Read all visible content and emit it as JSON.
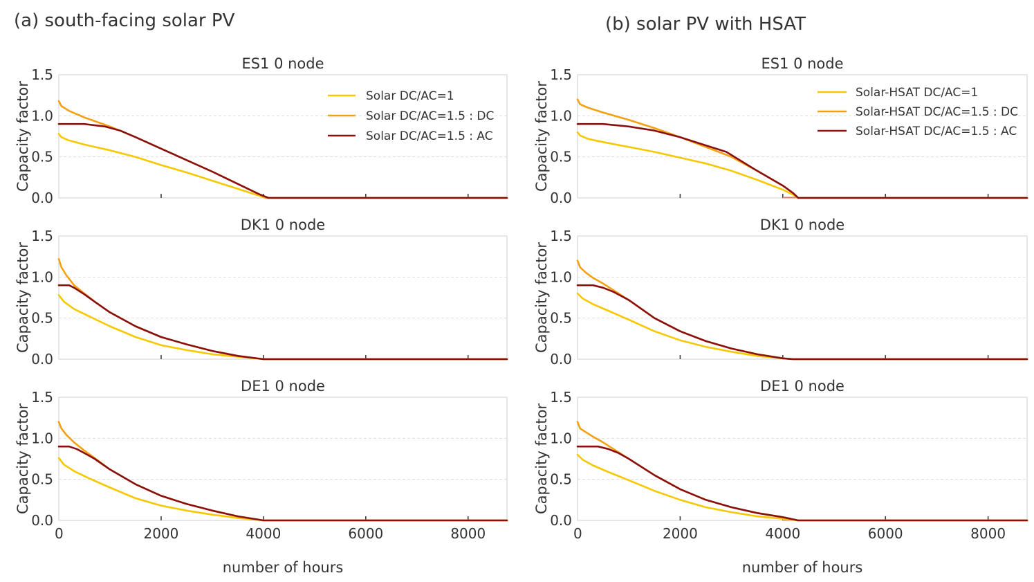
{
  "colors": {
    "series": [
      "#f5c800",
      "#f5a00f",
      "#8a1010"
    ],
    "baseline": "#d97a6a",
    "grid": "#dddddd",
    "frame": "#cfcfcf"
  },
  "chart_data": [
    {
      "panel_title": "(a) south-facing solar PV",
      "type": "line",
      "xlabel": "number of hours",
      "xlim": [
        0,
        8760
      ],
      "xticks": [
        0,
        2000,
        4000,
        6000,
        8000
      ],
      "xtick_labels": [
        "0",
        "2000",
        "4000",
        "6000",
        "8000"
      ],
      "legend": [
        "Solar DC/AC=1",
        "Solar DC/AC=1.5 : DC",
        "Solar DC/AC=1.5 : AC"
      ],
      "legend_position": "top-right of first subplot",
      "subplots": [
        {
          "title": "ES1 0 node",
          "ylabel": "Capacity factor",
          "ylim": [
            0,
            1.5
          ],
          "yticks": [
            0,
            0.5,
            1.0,
            1.5
          ],
          "ytick_labels": [
            "0.0",
            "0.5",
            "1.0",
            "1.5"
          ],
          "grid": true,
          "series": [
            {
              "name": "Solar DC/AC=1",
              "x": [
                0,
                50,
                200,
                500,
                1000,
                1500,
                2000,
                2500,
                3000,
                3500,
                3900,
                4050,
                8760
              ],
              "values": [
                0.78,
                0.74,
                0.7,
                0.65,
                0.58,
                0.5,
                0.4,
                0.31,
                0.21,
                0.11,
                0.03,
                0,
                0
              ]
            },
            {
              "name": "Solar DC/AC=1.5 : DC",
              "x": [
                0,
                50,
                200,
                500,
                1000,
                1500,
                2000,
                2500,
                3000,
                3500,
                3900,
                4050,
                8760
              ],
              "values": [
                1.18,
                1.12,
                1.06,
                0.98,
                0.87,
                0.74,
                0.6,
                0.46,
                0.32,
                0.17,
                0.05,
                0,
                0
              ]
            },
            {
              "name": "Solar DC/AC=1.5 : AC",
              "x": [
                0,
                500,
                900,
                1200,
                1500,
                2000,
                2500,
                3000,
                3500,
                3900,
                4100,
                8760
              ],
              "values": [
                0.9,
                0.9,
                0.87,
                0.82,
                0.74,
                0.6,
                0.46,
                0.32,
                0.17,
                0.05,
                0,
                0
              ]
            }
          ]
        },
        {
          "title": "DK1 0 node",
          "ylabel": "Capacity factor",
          "ylim": [
            0,
            1.5
          ],
          "yticks": [
            0,
            0.5,
            1.0,
            1.5
          ],
          "ytick_labels": [
            "0.0",
            "0.5",
            "1.0",
            "1.5"
          ],
          "grid": true,
          "series": [
            {
              "name": "Solar DC/AC=1",
              "x": [
                0,
                100,
                300,
                600,
                1000,
                1500,
                2000,
                2500,
                3000,
                3500,
                4000,
                8760
              ],
              "values": [
                0.78,
                0.7,
                0.61,
                0.52,
                0.4,
                0.27,
                0.17,
                0.11,
                0.06,
                0.03,
                0,
                0
              ]
            },
            {
              "name": "Solar DC/AC=1.5 : DC",
              "x": [
                0,
                50,
                150,
                300,
                500,
                700,
                1000,
                1500,
                2000,
                2500,
                3000,
                3500,
                4000,
                8760
              ],
              "values": [
                1.22,
                1.12,
                1.02,
                0.9,
                0.8,
                0.7,
                0.57,
                0.4,
                0.27,
                0.18,
                0.1,
                0.04,
                0,
                0
              ]
            },
            {
              "name": "Solar DC/AC=1.5 : AC",
              "x": [
                0,
                200,
                300,
                500,
                700,
                1000,
                1500,
                2000,
                2500,
                3000,
                3500,
                4000,
                8760
              ],
              "values": [
                0.9,
                0.9,
                0.87,
                0.79,
                0.7,
                0.57,
                0.4,
                0.27,
                0.18,
                0.1,
                0.04,
                0,
                0
              ]
            }
          ]
        },
        {
          "title": "DE1 0 node",
          "ylabel": "Capacity factor",
          "ylim": [
            0,
            1.5
          ],
          "yticks": [
            0,
            0.5,
            1.0,
            1.5
          ],
          "ytick_labels": [
            "0.0",
            "0.5",
            "1.0",
            "1.5"
          ],
          "grid": true,
          "series": [
            {
              "name": "Solar DC/AC=1",
              "x": [
                0,
                100,
                300,
                600,
                1000,
                1500,
                2000,
                2500,
                3000,
                3500,
                4000,
                8760
              ],
              "values": [
                0.76,
                0.68,
                0.6,
                0.51,
                0.4,
                0.27,
                0.18,
                0.12,
                0.07,
                0.03,
                0,
                0
              ]
            },
            {
              "name": "Solar DC/AC=1.5 : DC",
              "x": [
                0,
                50,
                150,
                300,
                500,
                700,
                1000,
                1500,
                2000,
                2500,
                3000,
                3500,
                4000,
                8760
              ],
              "values": [
                1.2,
                1.12,
                1.04,
                0.95,
                0.85,
                0.76,
                0.62,
                0.44,
                0.3,
                0.2,
                0.12,
                0.05,
                0,
                0
              ]
            },
            {
              "name": "Solar DC/AC=1.5 : AC",
              "x": [
                0,
                200,
                350,
                500,
                700,
                1000,
                1500,
                2000,
                2500,
                3000,
                3500,
                4000,
                8760
              ],
              "values": [
                0.9,
                0.9,
                0.87,
                0.82,
                0.75,
                0.62,
                0.44,
                0.3,
                0.2,
                0.12,
                0.05,
                0,
                0
              ]
            }
          ]
        }
      ]
    },
    {
      "panel_title": "(b) solar PV with HSAT",
      "type": "line",
      "xlabel": "number of hours",
      "xlim": [
        0,
        8760
      ],
      "xticks": [
        0,
        2000,
        4000,
        6000,
        8000
      ],
      "xtick_labels": [
        "0",
        "2000",
        "4000",
        "6000",
        "8000"
      ],
      "legend": [
        "Solar-HSAT DC/AC=1",
        "Solar-HSAT DC/AC=1.5 : DC",
        "Solar-HSAT DC/AC=1.5 : AC"
      ],
      "legend_position": "top-right of first subplot",
      "subplots": [
        {
          "title": "ES1 0 node",
          "ylabel": "Capacity factor",
          "ylim": [
            0,
            1.5
          ],
          "yticks": [
            0,
            0.5,
            1.0,
            1.5
          ],
          "ytick_labels": [
            "0.0",
            "0.5",
            "1.0",
            "1.5"
          ],
          "grid": true,
          "series": [
            {
              "name": "Solar-HSAT DC/AC=1",
              "x": [
                0,
                50,
                200,
                500,
                1000,
                1500,
                2000,
                2500,
                3000,
                3500,
                4000,
                4200,
                4300,
                8760
              ],
              "values": [
                0.8,
                0.76,
                0.72,
                0.68,
                0.62,
                0.56,
                0.49,
                0.42,
                0.33,
                0.22,
                0.1,
                0.04,
                0,
                0
              ]
            },
            {
              "name": "Solar-HSAT DC/AC=1.5 : DC",
              "x": [
                0,
                50,
                200,
                500,
                1000,
                1500,
                2000,
                2500,
                3000,
                3500,
                4000,
                4200,
                4300,
                8760
              ],
              "values": [
                1.2,
                1.14,
                1.1,
                1.04,
                0.95,
                0.85,
                0.74,
                0.62,
                0.5,
                0.33,
                0.15,
                0.06,
                0,
                0
              ]
            },
            {
              "name": "Solar-HSAT DC/AC=1.5 : AC",
              "x": [
                0,
                500,
                1000,
                1500,
                2000,
                2500,
                2900,
                3500,
                4000,
                4200,
                4300,
                8760
              ],
              "values": [
                0.9,
                0.9,
                0.87,
                0.82,
                0.74,
                0.64,
                0.56,
                0.33,
                0.15,
                0.06,
                0,
                0
              ]
            }
          ]
        },
        {
          "title": "DK1 0 node",
          "ylabel": "Capacity factor",
          "ylim": [
            0,
            1.5
          ],
          "yticks": [
            0,
            0.5,
            1.0,
            1.5
          ],
          "ytick_labels": [
            "0.0",
            "0.5",
            "1.0",
            "1.5"
          ],
          "grid": true,
          "series": [
            {
              "name": "Solar-HSAT DC/AC=1",
              "x": [
                0,
                100,
                300,
                600,
                1000,
                1500,
                2000,
                2500,
                3000,
                3500,
                4000,
                4200,
                8760
              ],
              "values": [
                0.8,
                0.74,
                0.67,
                0.59,
                0.48,
                0.34,
                0.23,
                0.15,
                0.09,
                0.04,
                0.01,
                0,
                0
              ]
            },
            {
              "name": "Solar-HSAT DC/AC=1.5 : DC",
              "x": [
                0,
                50,
                150,
                300,
                500,
                700,
                1000,
                1500,
                2000,
                2500,
                3000,
                3500,
                4000,
                4200,
                8760
              ],
              "values": [
                1.2,
                1.12,
                1.06,
                0.99,
                0.92,
                0.84,
                0.72,
                0.5,
                0.34,
                0.22,
                0.13,
                0.06,
                0.01,
                0,
                0
              ]
            },
            {
              "name": "Solar-HSAT DC/AC=1.5 : AC",
              "x": [
                0,
                300,
                500,
                700,
                1000,
                1500,
                2000,
                2500,
                3000,
                3500,
                4000,
                4200,
                8760
              ],
              "values": [
                0.9,
                0.9,
                0.87,
                0.82,
                0.72,
                0.5,
                0.34,
                0.22,
                0.13,
                0.06,
                0.01,
                0,
                0
              ]
            }
          ]
        },
        {
          "title": "DE1 0 node",
          "ylabel": "Capacity factor",
          "ylim": [
            0,
            1.5
          ],
          "yticks": [
            0,
            0.5,
            1.0,
            1.5
          ],
          "ytick_labels": [
            "0.0",
            "0.5",
            "1.0",
            "1.5"
          ],
          "grid": true,
          "series": [
            {
              "name": "Solar-HSAT DC/AC=1",
              "x": [
                0,
                100,
                300,
                600,
                1000,
                1500,
                2000,
                2500,
                3000,
                3500,
                4000,
                4300,
                8760
              ],
              "values": [
                0.8,
                0.74,
                0.67,
                0.59,
                0.49,
                0.36,
                0.25,
                0.16,
                0.1,
                0.05,
                0.02,
                0,
                0
              ]
            },
            {
              "name": "Solar-HSAT DC/AC=1.5 : DC",
              "x": [
                0,
                50,
                150,
                300,
                500,
                700,
                1000,
                1500,
                2000,
                2500,
                3000,
                3500,
                4000,
                4300,
                8760
              ],
              "values": [
                1.2,
                1.12,
                1.08,
                1.02,
                0.95,
                0.87,
                0.75,
                0.55,
                0.38,
                0.25,
                0.16,
                0.09,
                0.04,
                0,
                0
              ]
            },
            {
              "name": "Solar-HSAT DC/AC=1.5 : AC",
              "x": [
                0,
                400,
                600,
                800,
                1000,
                1500,
                2000,
                2500,
                3000,
                3500,
                4000,
                4300,
                8760
              ],
              "values": [
                0.9,
                0.9,
                0.87,
                0.82,
                0.75,
                0.55,
                0.38,
                0.25,
                0.16,
                0.09,
                0.04,
                0,
                0
              ]
            }
          ]
        }
      ]
    }
  ]
}
